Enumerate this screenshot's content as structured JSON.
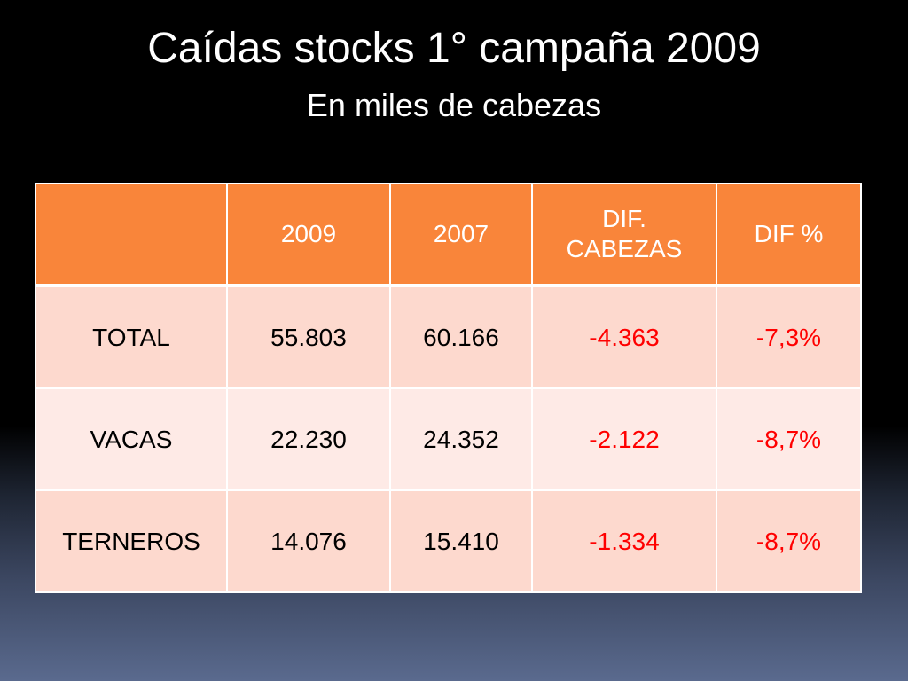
{
  "slide": {
    "title": "Caídas stocks 1° campaña 2009",
    "subtitle": "En miles de cabezas"
  },
  "table": {
    "headers": [
      "",
      "2009",
      "2007",
      "DIF.\nCABEZAS",
      "DIF %"
    ],
    "rows": [
      {
        "label": "TOTAL",
        "v2009": "55.803",
        "v2007": "60.166",
        "dif": "-4.363",
        "pct": "-7,3%"
      },
      {
        "label": "VACAS",
        "v2009": "22.230",
        "v2007": "24.352",
        "dif": "-2.122",
        "pct": "-8,7%"
      },
      {
        "label": "TERNEROS",
        "v2009": "14.076",
        "v2007": "15.410",
        "dif": "-1.334",
        "pct": "-8,7%"
      }
    ]
  },
  "colors": {
    "header_bg": "#f9853a",
    "row_odd_bg": "#fdd9ce",
    "row_even_bg": "#feeae6",
    "negative_text": "#ff0000"
  }
}
